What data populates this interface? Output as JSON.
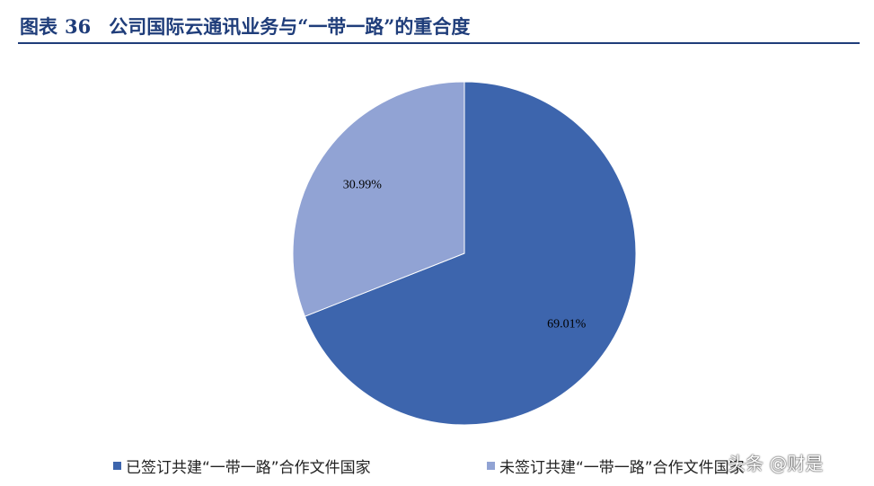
{
  "figure": {
    "label": "图表",
    "number": "36",
    "title": "公司国际云通讯业务与“一带一路”的重合度"
  },
  "chart_data": {
    "type": "pie",
    "start_angle_deg": 0,
    "direction": "clockwise",
    "slices": [
      {
        "name": "已签订共建“一带一路”合作文件国家",
        "value": 69.01,
        "label": "69.01%",
        "color": "#3d65ad"
      },
      {
        "name": "未签订共建“一带一路”合作文件国家",
        "value": 30.99,
        "label": "30.99%",
        "color": "#91a3d4"
      }
    ],
    "legend_position": "bottom"
  },
  "watermark": {
    "text": "头条 @财是"
  }
}
